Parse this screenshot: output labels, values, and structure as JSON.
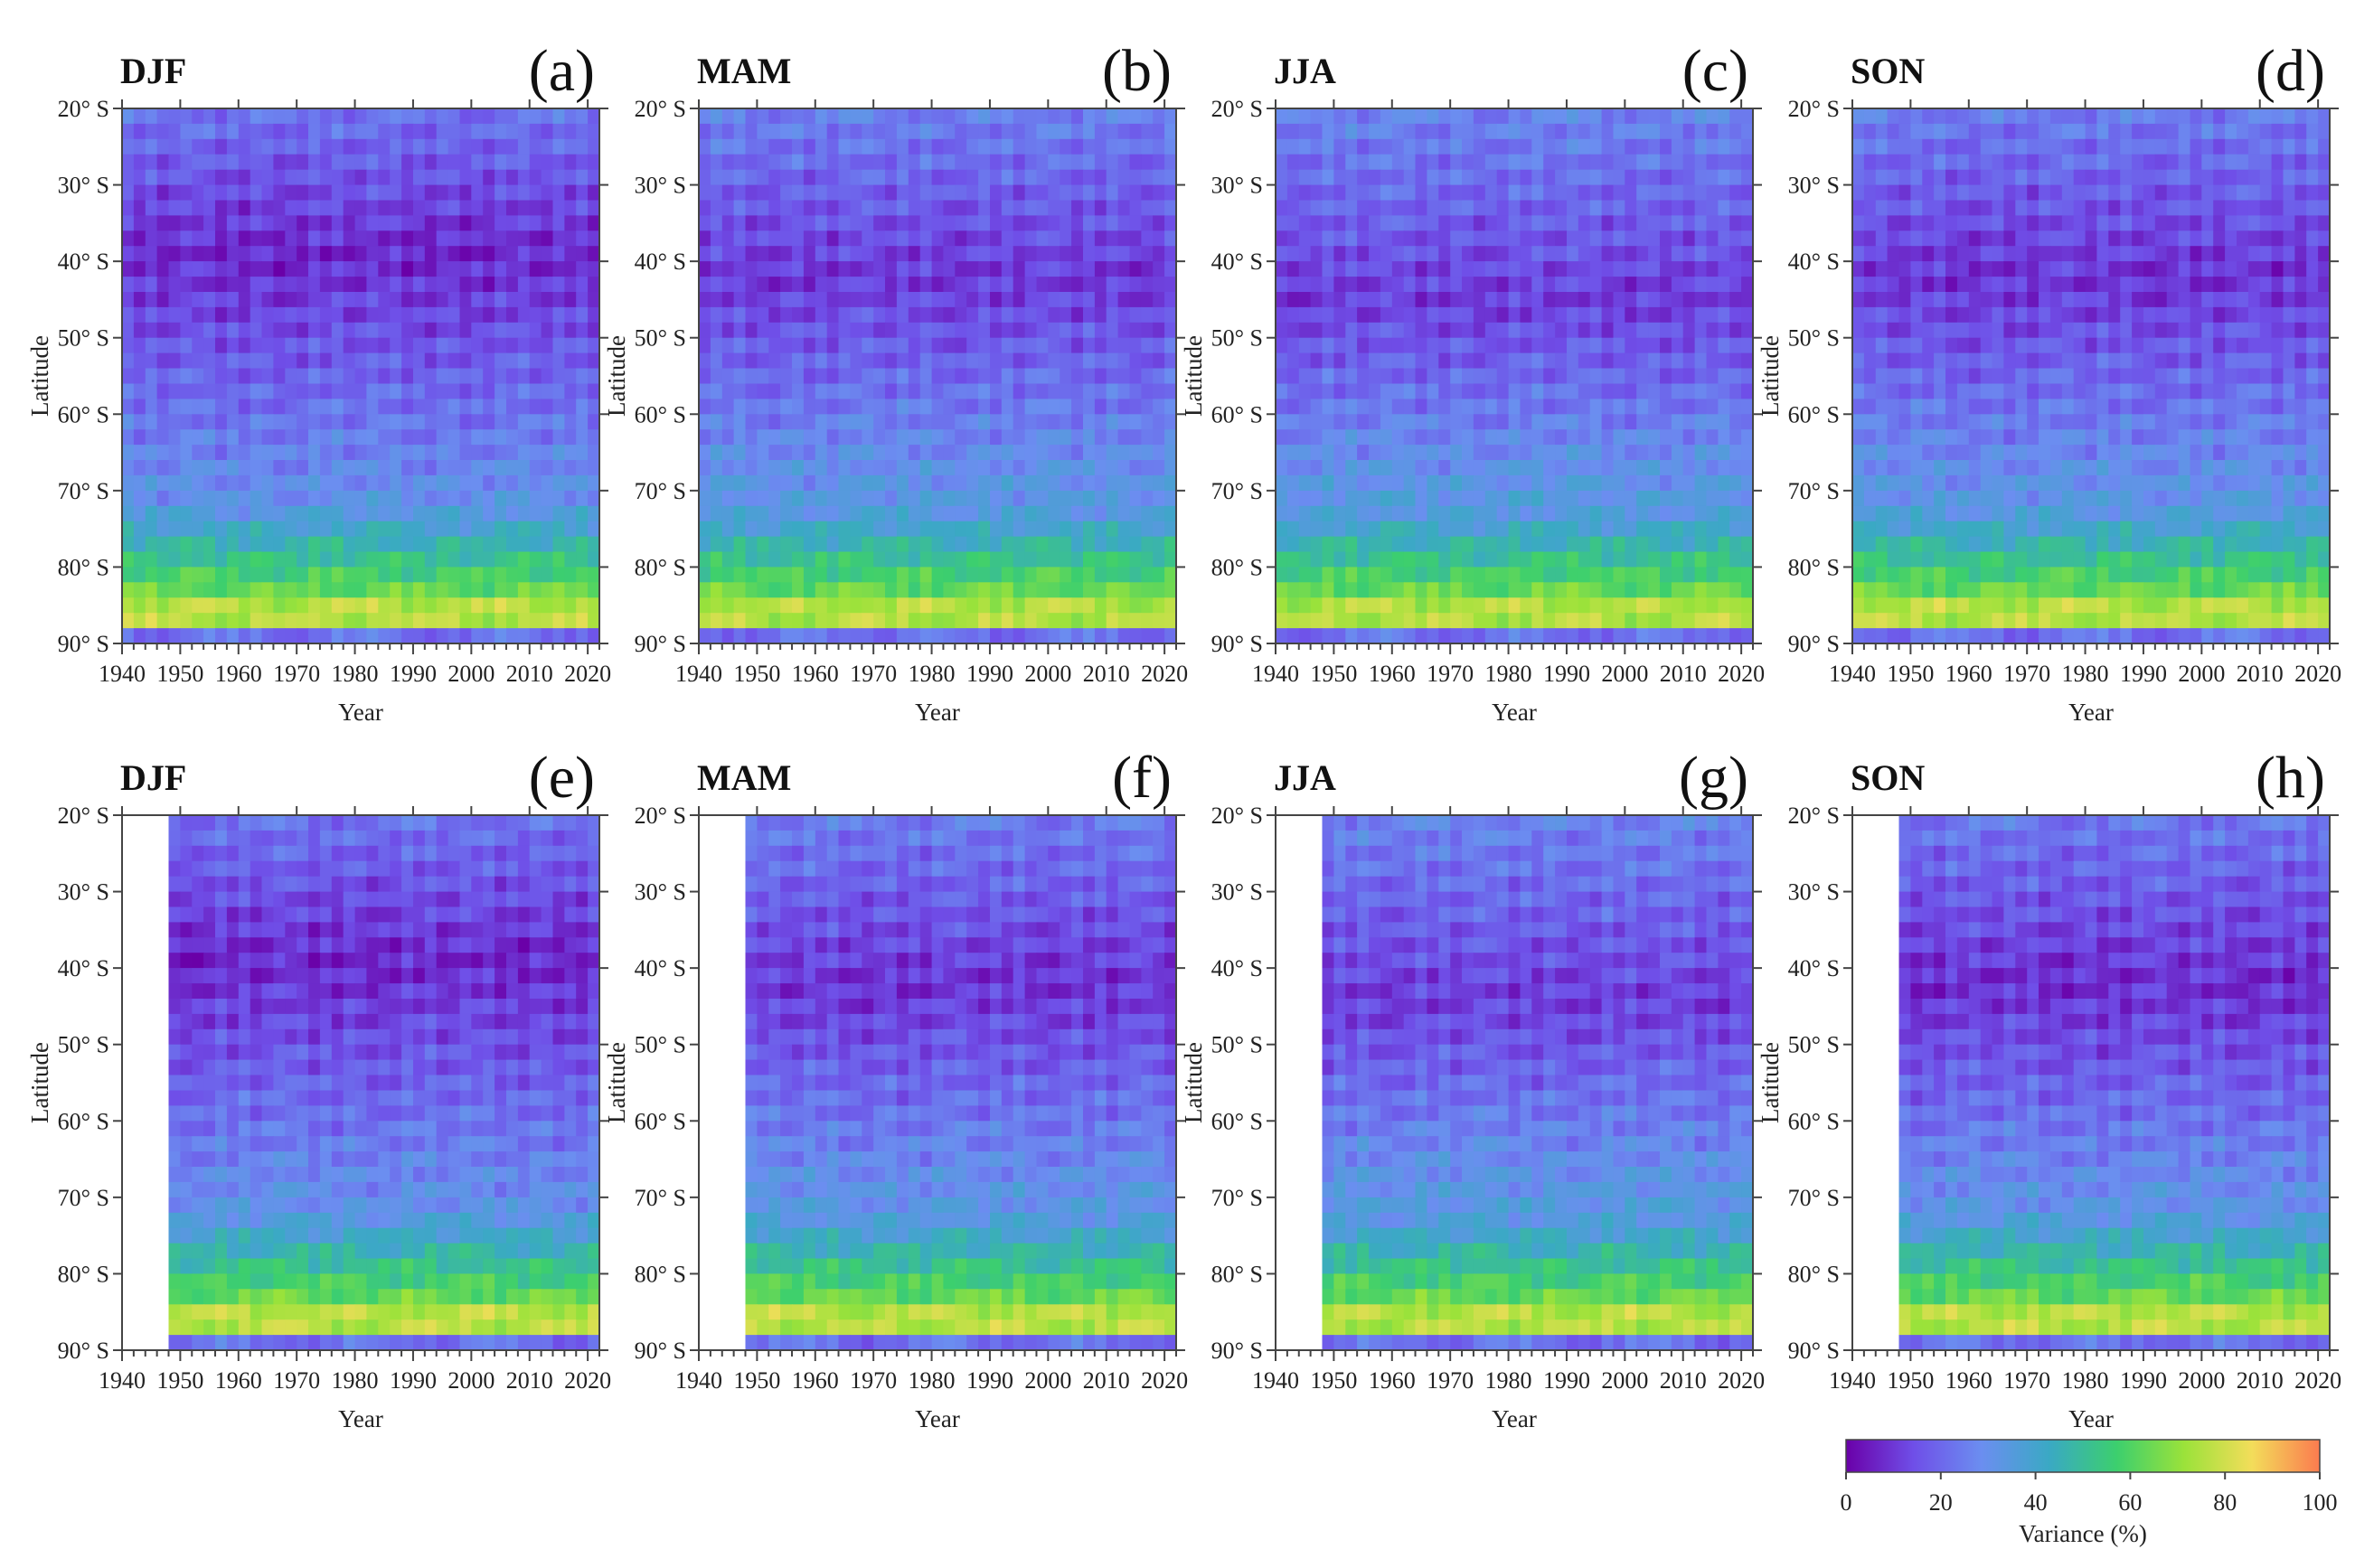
{
  "chart_data": {
    "type": "heatmap",
    "description_units": "Variance (%)",
    "colorbar": {
      "label": "Variance (%)",
      "ticks": [
        "0",
        "20",
        "40",
        "60",
        "80",
        "100"
      ],
      "min": 0,
      "max": 100,
      "colors": [
        "#6a00a8",
        "#6f4fe8",
        "#6b8ef0",
        "#3aa9c4",
        "#3ccf6e",
        "#9be23a",
        "#f3dd5a",
        "#fb7b4f"
      ]
    },
    "x_ticks": [
      "1940",
      "1950",
      "1960",
      "1970",
      "1980",
      "1990",
      "2000",
      "2010",
      "2020"
    ],
    "y_ticks": [
      "20° S",
      "30° S",
      "40° S",
      "50° S",
      "60° S",
      "70° S",
      "80° S",
      "90° S"
    ],
    "xlabel": "Year",
    "ylabel": "Latitude",
    "xlim": [
      1940,
      2022
    ],
    "ylim_deg_south": [
      20,
      90
    ],
    "panels": [
      {
        "season": "DJF",
        "label": "(a)",
        "start_year": 1940,
        "min_lat": 39,
        "min_var": 7,
        "band_lat": 86,
        "band_var": 92
      },
      {
        "season": "MAM",
        "label": "(b)",
        "start_year": 1940,
        "min_lat": 42,
        "min_var": 10,
        "band_lat": 86,
        "band_var": 90
      },
      {
        "season": "JJA",
        "label": "(c)",
        "start_year": 1940,
        "min_lat": 45,
        "min_var": 11,
        "band_lat": 86,
        "band_var": 90
      },
      {
        "season": "SON",
        "label": "(d)",
        "start_year": 1940,
        "min_lat": 42,
        "min_var": 9,
        "band_lat": 86,
        "band_var": 91
      },
      {
        "season": "DJF",
        "label": "(e)",
        "start_year": 1948,
        "min_lat": 39,
        "min_var": 7,
        "band_lat": 86,
        "band_var": 93
      },
      {
        "season": "MAM",
        "label": "(f)",
        "start_year": 1948,
        "min_lat": 42,
        "min_var": 9,
        "band_lat": 86,
        "band_var": 92
      },
      {
        "season": "JJA",
        "label": "(g)",
        "start_year": 1948,
        "min_lat": 44,
        "min_var": 11,
        "band_lat": 86,
        "band_var": 91
      },
      {
        "season": "SON",
        "label": "(h)",
        "start_year": 1948,
        "min_lat": 42,
        "min_var": 8,
        "band_lat": 86,
        "band_var": 92
      }
    ]
  }
}
